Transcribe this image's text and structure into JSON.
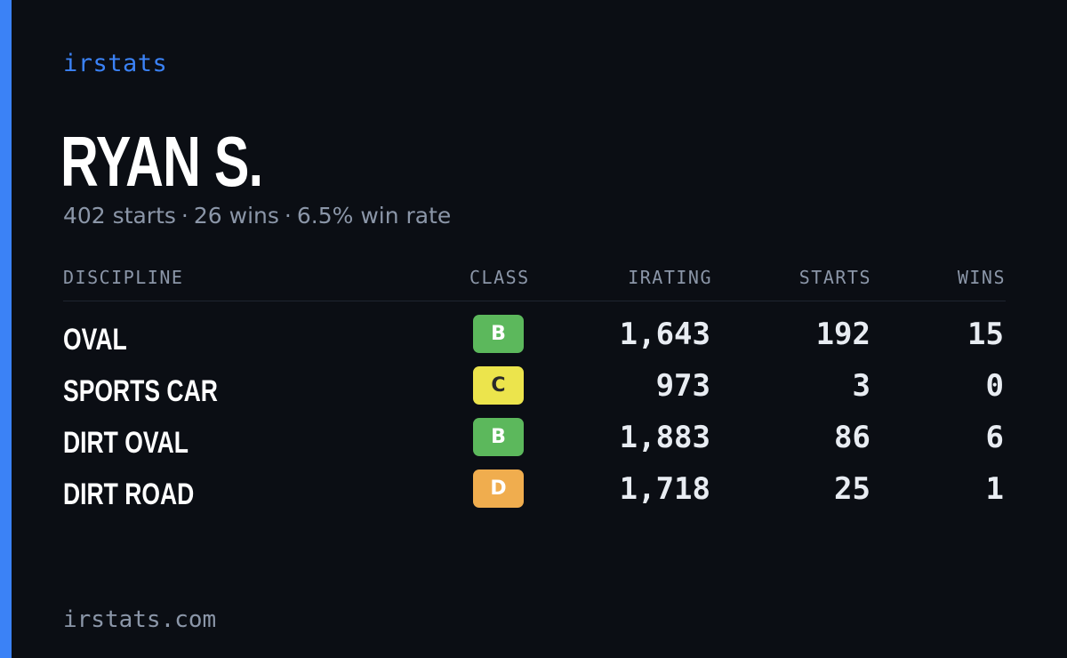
{
  "brand": "irstats",
  "driver": {
    "name": "RYAN S.",
    "starts": "402 starts",
    "wins": "26 wins",
    "win_rate": "6.5% win rate",
    "separator": "·"
  },
  "table": {
    "headers": {
      "discipline": "DISCIPLINE",
      "class": "CLASS",
      "irating": "IRATING",
      "starts": "STARTS",
      "wins": "WINS"
    },
    "rows": [
      {
        "discipline": "OVAL",
        "class": "B",
        "irating": "1,643",
        "starts": "192",
        "wins": "15"
      },
      {
        "discipline": "SPORTS CAR",
        "class": "C",
        "irating": "973",
        "starts": "3",
        "wins": "0"
      },
      {
        "discipline": "DIRT OVAL",
        "class": "B",
        "irating": "1,883",
        "starts": "86",
        "wins": "6"
      },
      {
        "discipline": "DIRT ROAD",
        "class": "D",
        "irating": "1,718",
        "starts": "25",
        "wins": "1"
      }
    ]
  },
  "class_colors": {
    "B": {
      "bg": "#5cb85c",
      "fg": "#ffffff"
    },
    "C": {
      "bg": "#ece44c",
      "fg": "#2a2a2a"
    },
    "D": {
      "bg": "#f0ad4e",
      "fg": "#ffffff"
    }
  },
  "colors": {
    "accent": "#3b82f6",
    "background": "#0b0e14",
    "muted": "#8b96a8"
  },
  "footer": "irstats.com"
}
